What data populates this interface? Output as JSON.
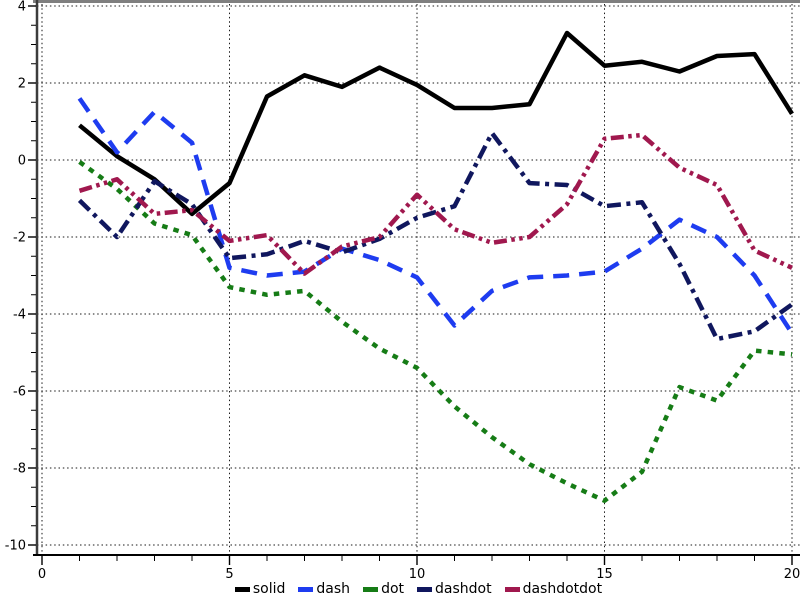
{
  "figure": {
    "background": "#ffffff",
    "top_border_color": "#7f7f7f",
    "left_spine_color": "#3c3c3c",
    "bottom_spine_color": "#000000",
    "grid_color": "#1a1a1a",
    "tick_label_color": "#000000"
  },
  "chart_data": {
    "type": "line",
    "title": "",
    "xlabel": "",
    "ylabel": "",
    "xlim": [
      0,
      20
    ],
    "ylim": [
      -10,
      4
    ],
    "x_major_ticks": [
      0,
      5,
      10,
      15,
      20
    ],
    "x_minor_step": 1,
    "y_major_ticks": [
      4,
      2,
      0,
      -2,
      -4,
      -6,
      -8,
      -10
    ],
    "y_minor_step": 0.5,
    "grid": true,
    "legend_position": "bottom-center",
    "x": [
      1,
      2,
      3,
      4,
      5,
      6,
      7,
      8,
      9,
      10,
      11,
      12,
      13,
      14,
      15,
      16,
      17,
      18,
      19,
      20
    ],
    "series": [
      {
        "name": "solid",
        "line_style": "solid",
        "color": "#000000",
        "values": [
          0.9,
          0.1,
          -0.5,
          -1.4,
          -0.6,
          1.65,
          2.2,
          1.9,
          2.4,
          1.95,
          1.35,
          1.35,
          1.45,
          3.3,
          2.45,
          2.55,
          2.3,
          2.7,
          2.75,
          1.2
        ]
      },
      {
        "name": "dash",
        "line_style": "dash",
        "color": "#1e3cf0",
        "values": [
          1.6,
          0.2,
          1.25,
          0.45,
          -2.8,
          -3.0,
          -2.9,
          -2.3,
          -2.6,
          -3.05,
          -4.3,
          -3.4,
          -3.05,
          -3.0,
          -2.9,
          -2.3,
          -1.55,
          -2.0,
          -3.0,
          -4.5
        ]
      },
      {
        "name": "dot",
        "line_style": "dot",
        "color": "#167c16",
        "values": [
          -0.05,
          -0.75,
          -1.65,
          -1.95,
          -3.3,
          -3.5,
          -3.4,
          -4.2,
          -4.9,
          -5.4,
          -6.4,
          -7.2,
          -7.9,
          -8.4,
          -8.85,
          -8.1,
          -5.9,
          -6.25,
          -4.95,
          -5.05
        ]
      },
      {
        "name": "dashdot",
        "line_style": "dashdot",
        "color": "#10175e",
        "values": [
          -1.05,
          -2.0,
          -0.55,
          -1.15,
          -2.55,
          -2.45,
          -2.1,
          -2.4,
          -2.05,
          -1.5,
          -1.2,
          0.7,
          -0.6,
          -0.65,
          -1.2,
          -1.1,
          -2.7,
          -4.65,
          -4.45,
          -3.75
        ]
      },
      {
        "name": "dashdotdot",
        "line_style": "dashdotdot",
        "color": "#a0184e",
        "values": [
          -0.8,
          -0.5,
          -1.4,
          -1.3,
          -2.1,
          -1.95,
          -2.95,
          -2.25,
          -2.0,
          -0.9,
          -1.8,
          -2.15,
          -2.0,
          -1.15,
          0.55,
          0.65,
          -0.2,
          -0.65,
          -2.35,
          -2.8
        ]
      }
    ]
  }
}
